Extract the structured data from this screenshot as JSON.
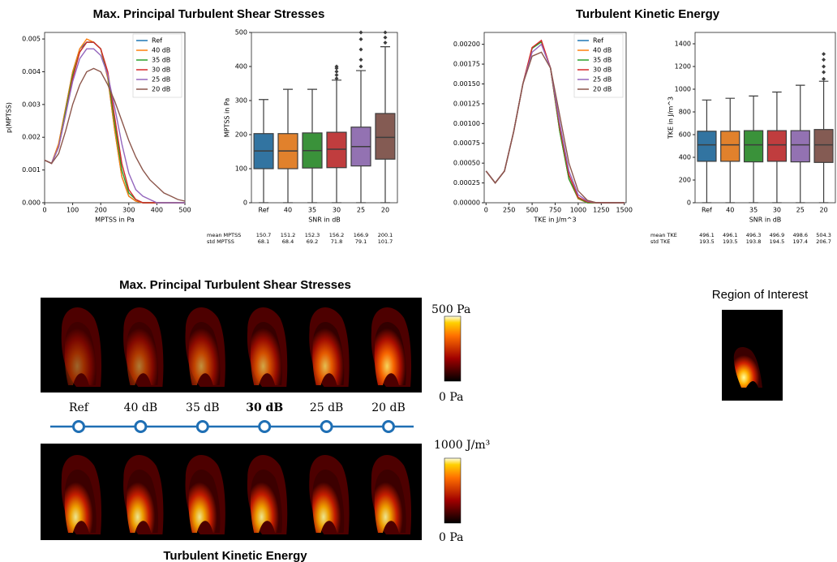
{
  "chart_data": [
    {
      "type": "line",
      "title": "Max. Principal Turbulent Shear Stresses",
      "xlabel": "MPTSS in Pa",
      "ylabel": "p(MPTSS)",
      "xlim": [
        0,
        500
      ],
      "ylim": [
        0,
        0.0052
      ],
      "xticks": [
        0,
        100,
        200,
        300,
        400,
        500
      ],
      "yticks": [
        {
          "value": 0,
          "label": "0.000"
        },
        0.001,
        0.002,
        0.003,
        0.004,
        0.005
      ],
      "legend": "upper right",
      "x": [
        0,
        25,
        50,
        75,
        100,
        125,
        150,
        175,
        200,
        225,
        250,
        275,
        300,
        325,
        350,
        375,
        400,
        425,
        450,
        475,
        500
      ],
      "series": [
        {
          "name": "Ref",
          "color": "#1f77b4",
          "values": [
            0.0013,
            0.0012,
            0.0018,
            0.0029,
            0.004,
            0.0047,
            0.0049,
            0.0049,
            0.0047,
            0.0038,
            0.0022,
            0.0008,
            0.0002,
            5e-05,
            0,
            0,
            0,
            0,
            0,
            0,
            0
          ]
        },
        {
          "name": "40 dB",
          "color": "#ff7f0e",
          "values": [
            0.0013,
            0.0012,
            0.0018,
            0.0029,
            0.004,
            0.0047,
            0.005,
            0.0049,
            0.0047,
            0.0038,
            0.0022,
            0.0008,
            0.0002,
            5e-05,
            0,
            0,
            0,
            0,
            0,
            0,
            0
          ]
        },
        {
          "name": "35 dB",
          "color": "#2ca02c",
          "values": [
            0.0013,
            0.0012,
            0.0017,
            0.0028,
            0.0039,
            0.0046,
            0.0049,
            0.0049,
            0.0047,
            0.0039,
            0.0024,
            0.001,
            0.0003,
            0.0001,
            0,
            0,
            0,
            0,
            0,
            0,
            0
          ]
        },
        {
          "name": "30 dB",
          "color": "#d62728",
          "values": [
            0.0013,
            0.0012,
            0.0017,
            0.0027,
            0.0038,
            0.0046,
            0.0049,
            0.0049,
            0.0047,
            0.004,
            0.0026,
            0.0012,
            0.0004,
            0.0001,
            0,
            0,
            0,
            0,
            0,
            0,
            0
          ]
        },
        {
          "name": "25 dB",
          "color": "#9467bd",
          "values": [
            0.0013,
            0.0012,
            0.0017,
            0.0027,
            0.0037,
            0.0044,
            0.0047,
            0.0047,
            0.0045,
            0.0039,
            0.0029,
            0.0018,
            0.0009,
            0.0004,
            0.0002,
            0.0001,
            0,
            0,
            0,
            0,
            0
          ]
        },
        {
          "name": "20 dB",
          "color": "#8c564b",
          "values": [
            0.0013,
            0.0012,
            0.0015,
            0.0022,
            0.003,
            0.0036,
            0.004,
            0.0041,
            0.004,
            0.0036,
            0.0031,
            0.0025,
            0.0019,
            0.0014,
            0.001,
            0.0007,
            0.0005,
            0.0003,
            0.0002,
            0.0001,
            5e-05
          ]
        }
      ]
    },
    {
      "type": "box",
      "xlabel": "SNR in dB",
      "ylabel": "MPTSS in Pa",
      "ylim": [
        0,
        500
      ],
      "yticks": [
        0,
        100,
        200,
        300,
        400,
        500
      ],
      "categories": [
        "Ref",
        "40",
        "35",
        "30",
        "25",
        "20"
      ],
      "boxes": [
        {
          "color": "#3274a1",
          "whisker_low": 0,
          "q1": 100,
          "median": 152,
          "q3": 203,
          "whisker_high": 303,
          "outliers": []
        },
        {
          "color": "#e1812c",
          "whisker_low": 0,
          "q1": 100,
          "median": 152,
          "q3": 203,
          "whisker_high": 333,
          "outliers": []
        },
        {
          "color": "#3a923a",
          "whisker_low": 0,
          "q1": 102,
          "median": 153,
          "q3": 205,
          "whisker_high": 333,
          "outliers": []
        },
        {
          "color": "#c03d3e",
          "whisker_low": 0,
          "q1": 103,
          "median": 157,
          "q3": 207,
          "whisker_high": 360,
          "outliers": [
            365,
            375,
            385,
            395,
            400
          ]
        },
        {
          "color": "#9372b2",
          "whisker_low": 0,
          "q1": 108,
          "median": 165,
          "q3": 222,
          "whisker_high": 388,
          "outliers": [
            400,
            420,
            450,
            480,
            500
          ]
        },
        {
          "color": "#845b53",
          "whisker_low": 0,
          "q1": 128,
          "median": 192,
          "q3": 262,
          "whisker_high": 458,
          "outliers": [
            470,
            485,
            500
          ]
        }
      ],
      "stats": [
        {
          "label": "mean MPTSS",
          "values": [
            150.7,
            151.2,
            152.3,
            156.2,
            166.9,
            200.1
          ]
        },
        {
          "label": "std MPTSS",
          "values": [
            68.1,
            68.4,
            69.2,
            71.8,
            79.1,
            101.7
          ]
        }
      ]
    },
    {
      "type": "line",
      "title": "Turbulent Kinetic Energy",
      "xlabel": "TKE in J/m^3",
      "xlim": [
        -20,
        1520
      ],
      "ylim": [
        0,
        0.00215
      ],
      "xticks": [
        0,
        250,
        500,
        750,
        1000,
        1250,
        1500
      ],
      "yticks": [
        {
          "value": 0,
          "label": "0.00000"
        },
        0.00025,
        {
          "value": 0.0005,
          "label": "0.00050"
        },
        0.00075,
        {
          "value": 0.001,
          "label": "0.00100"
        },
        0.00125,
        {
          "value": 0.0015,
          "label": "0.00150"
        },
        0.00175,
        {
          "value": 0.002,
          "label": "0.00200"
        }
      ],
      "legend": "upper right",
      "x": [
        0,
        100,
        200,
        300,
        400,
        500,
        600,
        700,
        800,
        900,
        1000,
        1100,
        1200,
        1300,
        1400,
        1500
      ],
      "series": [
        {
          "name": "Ref",
          "color": "#1f77b4",
          "values": [
            0.0004,
            0.00025,
            0.0004,
            0.0009,
            0.0015,
            0.00195,
            0.00203,
            0.0017,
            0.0009,
            0.0003,
            5e-05,
            0,
            0,
            0,
            0,
            0
          ]
        },
        {
          "name": "40 dB",
          "color": "#ff7f0e",
          "values": [
            0.0004,
            0.00025,
            0.0004,
            0.0009,
            0.0015,
            0.00196,
            0.00204,
            0.0017,
            0.0009,
            0.0003,
            5e-05,
            0,
            0,
            0,
            0,
            0
          ]
        },
        {
          "name": "35 dB",
          "color": "#2ca02c",
          "values": [
            0.0004,
            0.00025,
            0.0004,
            0.0009,
            0.0015,
            0.00195,
            0.00203,
            0.0017,
            0.0009,
            0.0003,
            6e-05,
            0,
            0,
            0,
            0,
            0
          ]
        },
        {
          "name": "30 dB",
          "color": "#d62728",
          "values": [
            0.0004,
            0.00025,
            0.0004,
            0.0009,
            0.0015,
            0.00196,
            0.00205,
            0.0017,
            0.00095,
            0.00035,
            7e-05,
            1e-05,
            0,
            0,
            0,
            0
          ]
        },
        {
          "name": "25 dB",
          "color": "#9467bd",
          "values": [
            0.0004,
            0.00025,
            0.0004,
            0.0009,
            0.0015,
            0.0019,
            0.002,
            0.0017,
            0.001,
            0.0004,
            0.0001,
            2e-05,
            0,
            0,
            0,
            0
          ]
        },
        {
          "name": "20 dB",
          "color": "#8c564b",
          "values": [
            0.0004,
            0.00025,
            0.0004,
            0.0009,
            0.0015,
            0.00185,
            0.0019,
            0.0017,
            0.0011,
            0.0005,
            0.00015,
            3e-05,
            0,
            0,
            0,
            0
          ]
        }
      ]
    },
    {
      "type": "box",
      "xlabel": "SNR in dB",
      "ylabel": "TKE in J/m^3",
      "ylim": [
        0,
        1500
      ],
      "yticks": [
        0,
        200,
        400,
        600,
        800,
        1000,
        1200,
        1400
      ],
      "categories": [
        "Ref",
        "40",
        "35",
        "30",
        "25",
        "20"
      ],
      "boxes": [
        {
          "color": "#3274a1",
          "whisker_low": 0,
          "q1": 365,
          "median": 510,
          "q3": 630,
          "whisker_high": 905,
          "outliers": []
        },
        {
          "color": "#e1812c",
          "whisker_low": 0,
          "q1": 365,
          "median": 510,
          "q3": 630,
          "whisker_high": 920,
          "outliers": []
        },
        {
          "color": "#3a923a",
          "whisker_low": 0,
          "q1": 360,
          "median": 510,
          "q3": 635,
          "whisker_high": 940,
          "outliers": []
        },
        {
          "color": "#c03d3e",
          "whisker_low": 0,
          "q1": 365,
          "median": 510,
          "q3": 635,
          "whisker_high": 975,
          "outliers": []
        },
        {
          "color": "#9372b2",
          "whisker_low": 0,
          "q1": 360,
          "median": 510,
          "q3": 635,
          "whisker_high": 1035,
          "outliers": []
        },
        {
          "color": "#845b53",
          "whisker_low": 0,
          "q1": 355,
          "median": 510,
          "q3": 645,
          "whisker_high": 1070,
          "outliers": [
            1090,
            1150,
            1200,
            1260,
            1310
          ]
        }
      ],
      "stats": [
        {
          "label": "mean TKE",
          "values": [
            496.1,
            496.1,
            496.3,
            496.9,
            498.6,
            504.3
          ]
        },
        {
          "label": "std TKE",
          "values": [
            193.5,
            193.5,
            193.8,
            194.5,
            197.4,
            206.7
          ]
        }
      ]
    }
  ],
  "panels": {
    "mptss_title": "Max. Principal Turbulent Shear Stresses",
    "mptss_colorbar_max": "500 Pa",
    "mptss_colorbar_min": "0 Pa",
    "snr_labels": [
      "Ref",
      "40 dB",
      "35 dB",
      "30 dB",
      "25 dB",
      "20 dB"
    ],
    "tke_colorbar_max": "1000 J/m³",
    "tke_colorbar_min": "0 Pa",
    "tke_title": "Turbulent Kinetic Energy",
    "roi_title": "Region of Interest"
  }
}
